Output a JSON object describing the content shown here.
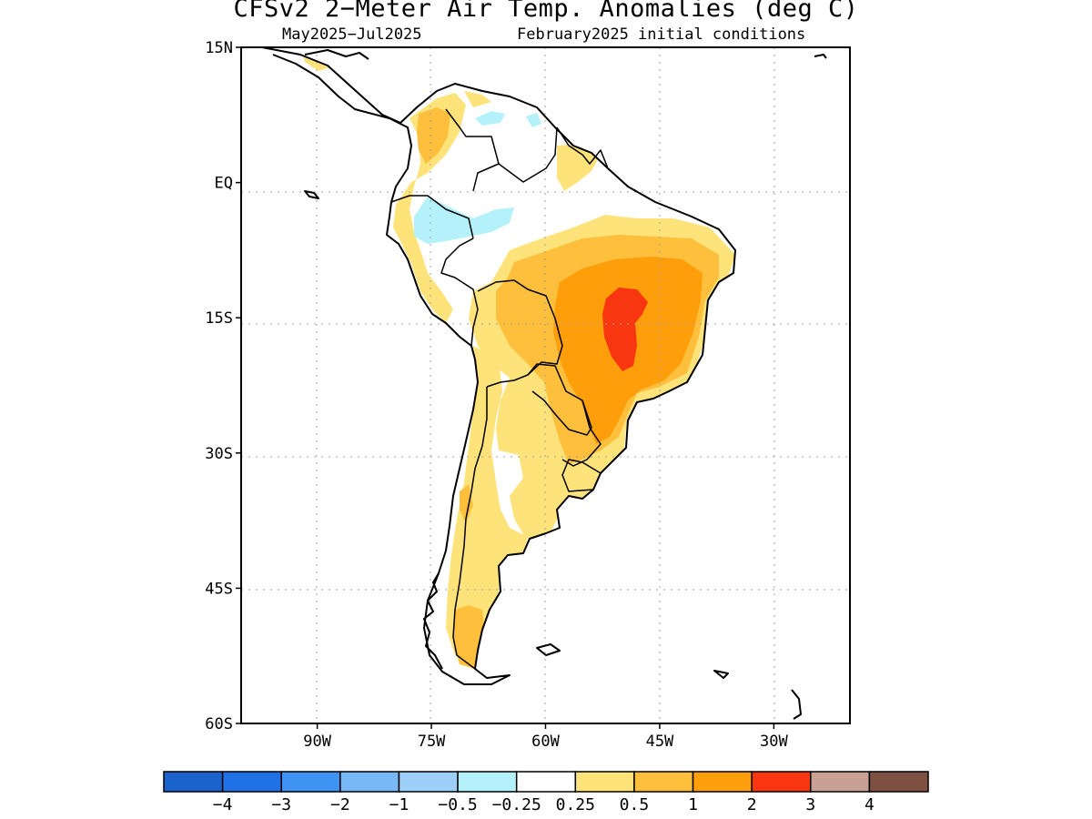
{
  "header": {
    "title": "CFSv2 2−Meter Air Temp. Anomalies (deg C)",
    "period": "May2025−Jul2025",
    "initial_conditions": "February2025 initial conditions"
  },
  "map": {
    "lon_range": [
      -100,
      -20
    ],
    "lat_range": [
      -60,
      15
    ],
    "lat_ticks": [
      {
        "value": 15,
        "label": "15N"
      },
      {
        "value": 0,
        "label": "EQ"
      },
      {
        "value": -15,
        "label": "15S"
      },
      {
        "value": -30,
        "label": "30S"
      },
      {
        "value": -45,
        "label": "45S"
      },
      {
        "value": -60,
        "label": "60S"
      }
    ],
    "lon_ticks": [
      {
        "value": -90,
        "label": "90W"
      },
      {
        "value": -75,
        "label": "75W"
      },
      {
        "value": -60,
        "label": "60W"
      },
      {
        "value": -45,
        "label": "45W"
      },
      {
        "value": -30,
        "label": "30W"
      }
    ],
    "grid": true
  },
  "colorbar": {
    "colors": [
      "#1a63cc",
      "#2171e6",
      "#3f93f3",
      "#78b8f6",
      "#9ecff9",
      "#b4f1fa",
      "#ffffff",
      "#fde37a",
      "#fdbf3c",
      "#fd9e0a",
      "#f8360f",
      "#c8a094",
      "#7d5042"
    ],
    "labels": [
      "−4",
      "−3",
      "−2",
      "−1",
      "−0.5",
      "−0.25",
      "0.25",
      "0.5",
      "1",
      "2",
      "3",
      "4"
    ]
  },
  "chart_data": {
    "type": "heatmap",
    "title": "CFSv2 2−Meter Air Temp. Anomalies (deg C)",
    "period": "May2025−Jul2025",
    "initial_conditions": "February2025 initial conditions",
    "units": "deg C",
    "region": "South America",
    "levels": [
      -4,
      -3,
      -2,
      -1,
      -0.5,
      -0.25,
      0.25,
      0.5,
      1,
      2,
      3,
      4
    ],
    "features": [
      {
        "name": "central-brazil-maximum",
        "range": "2 to 3",
        "approx_lon": -46,
        "approx_lat": -14
      },
      {
        "name": "eastern-brazil-core",
        "range": "1 to 2",
        "approx_lon": -47,
        "approx_lat": -15
      },
      {
        "name": "brazil-outer-ring",
        "range": "0.5 to 1",
        "approx_lon": -49,
        "approx_lat": -13
      },
      {
        "name": "northern-colombia",
        "range": "0.5 to 1",
        "approx_lon": -75,
        "approx_lat": 8
      },
      {
        "name": "southern-patagonia",
        "range": "0.5 to 1",
        "approx_lon": -71,
        "approx_lat": -48
      },
      {
        "name": "western-amazon-cool-spot",
        "range": "-0.5 to -0.25",
        "approx_lon": -72,
        "approx_lat": -3
      },
      {
        "name": "southern-venezuela-cool-spot",
        "range": "-0.5 to -0.25",
        "approx_lon": -67,
        "approx_lat": 7
      }
    ]
  }
}
